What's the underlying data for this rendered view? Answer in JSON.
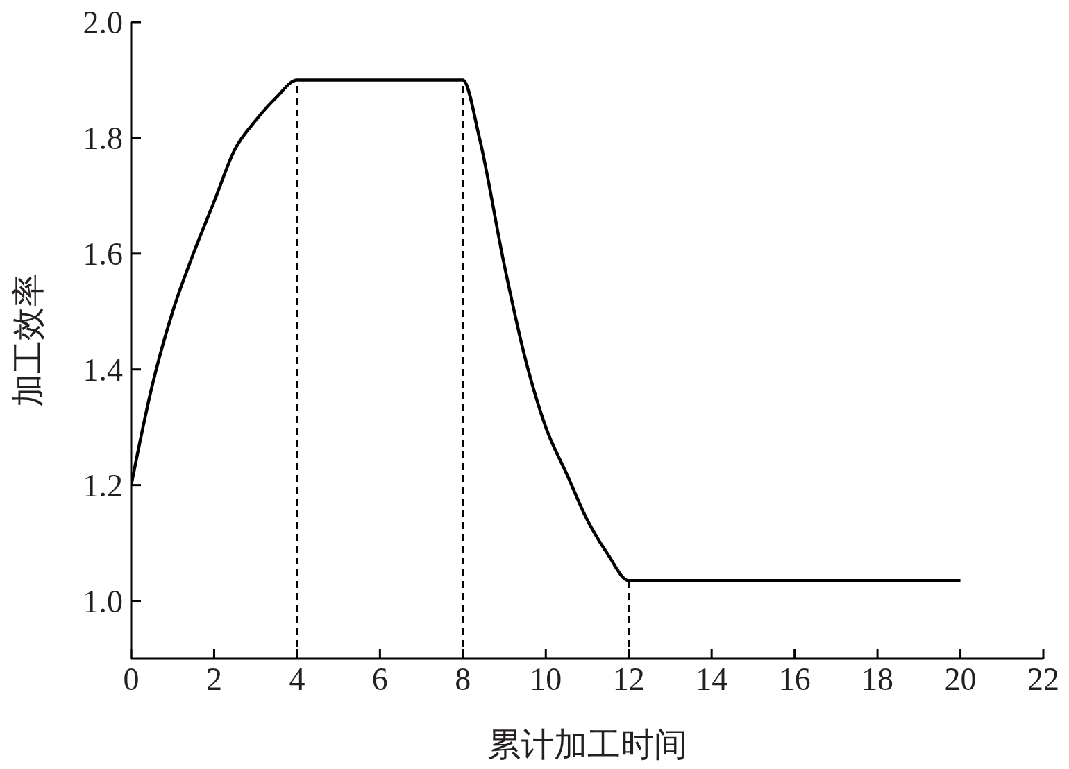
{
  "chart_data": {
    "type": "line",
    "xlabel": "累计加工时间",
    "ylabel": "加工效率",
    "series": [
      {
        "color": "#000000",
        "x": [
          0,
          0.5,
          1,
          1.5,
          2,
          2.5,
          3,
          3.5,
          4,
          8,
          8.4,
          9,
          9.5,
          10,
          10.5,
          11,
          11.5,
          12,
          20
        ],
        "values": [
          1.2,
          1.37,
          1.5,
          1.6,
          1.69,
          1.78,
          1.83,
          1.87,
          1.9,
          1.9,
          1.8,
          1.58,
          1.42,
          1.3,
          1.22,
          1.14,
          1.08,
          1.035,
          1.035
        ]
      }
    ],
    "xlim": [
      0,
      22
    ],
    "xticks": [
      0,
      2,
      4,
      6,
      8,
      10,
      12,
      14,
      16,
      18,
      20,
      22
    ],
    "ylim": [
      0.9,
      2.0
    ],
    "yticks": [
      {
        "value": 1.0,
        "label": "1.0"
      },
      {
        "value": 1.2,
        "label": "1.2"
      },
      {
        "value": 1.4,
        "label": "1.4"
      },
      {
        "value": 1.6,
        "label": "1.6"
      },
      {
        "value": 1.8,
        "label": "1.8"
      },
      {
        "value": 2.0,
        "label": "2.0"
      }
    ],
    "ref_lines": [
      {
        "axis": "x",
        "value": 4,
        "line_style": "dashed"
      },
      {
        "axis": "x",
        "value": 8,
        "line_style": "dashed"
      },
      {
        "axis": "x",
        "value": 12,
        "line_style": "dashed"
      }
    ],
    "grid": false,
    "legend": false,
    "marker": "none",
    "line_style": "solid"
  }
}
